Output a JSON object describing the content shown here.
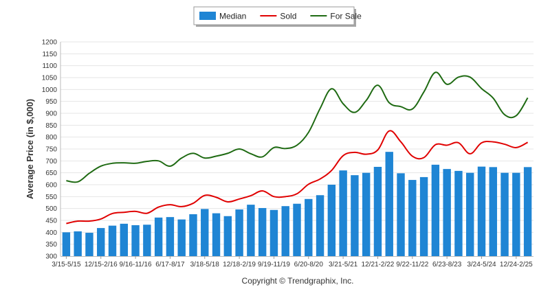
{
  "chart_data": {
    "type": "bar",
    "ylabel": "Average Price (in $,000)",
    "ylim": [
      300,
      1200
    ],
    "ytick_step": 50,
    "grid": true,
    "legend_position": "top-center",
    "copyright": "Copyright © Trendgraphix, Inc.",
    "x_tick_labels": [
      "3/15-5/15",
      "12/15-2/16",
      "9/16-11/16",
      "6/17-8/17",
      "3/18-5/18",
      "12/18-2/19",
      "9/19-11/19",
      "6/20-8/20",
      "3/21-5/21",
      "12/21-2/22",
      "9/22-11/22",
      "6/23-8/23",
      "3/24-5/24",
      "12/24-2/25"
    ],
    "series": [
      {
        "name": "Median",
        "type": "bar",
        "color": "#1f85d4",
        "values": [
          400,
          404,
          398,
          418,
          428,
          436,
          430,
          432,
          462,
          464,
          454,
          476,
          498,
          480,
          468,
          496,
          516,
          502,
          494,
          510,
          520,
          540,
          556,
          600,
          660,
          640,
          650,
          675,
          738,
          648,
          620,
          632,
          684,
          666,
          658,
          650,
          676,
          674,
          650,
          650,
          674
        ]
      },
      {
        "name": "Sold",
        "type": "line",
        "color": "#e00000",
        "values": [
          437,
          447,
          447,
          456,
          479,
          484,
          488,
          480,
          506,
          516,
          508,
          522,
          555,
          547,
          528,
          540,
          554,
          574,
          550,
          550,
          562,
          602,
          624,
          660,
          722,
          736,
          728,
          746,
          826,
          780,
          720,
          714,
          768,
          766,
          776,
          730,
          776,
          780,
          770,
          756,
          778
        ]
      },
      {
        "name": "For Sale",
        "type": "line",
        "color": "#1e6a12",
        "values": [
          617,
          612,
          648,
          678,
          690,
          692,
          690,
          698,
          700,
          678,
          712,
          732,
          712,
          720,
          732,
          750,
          730,
          717,
          756,
          752,
          766,
          820,
          920,
          1003,
          940,
          904,
          954,
          1018,
          944,
          928,
          918,
          990,
          1072,
          1022,
          1052,
          1052,
          1004,
          964,
          894,
          890,
          965
        ]
      }
    ]
  }
}
